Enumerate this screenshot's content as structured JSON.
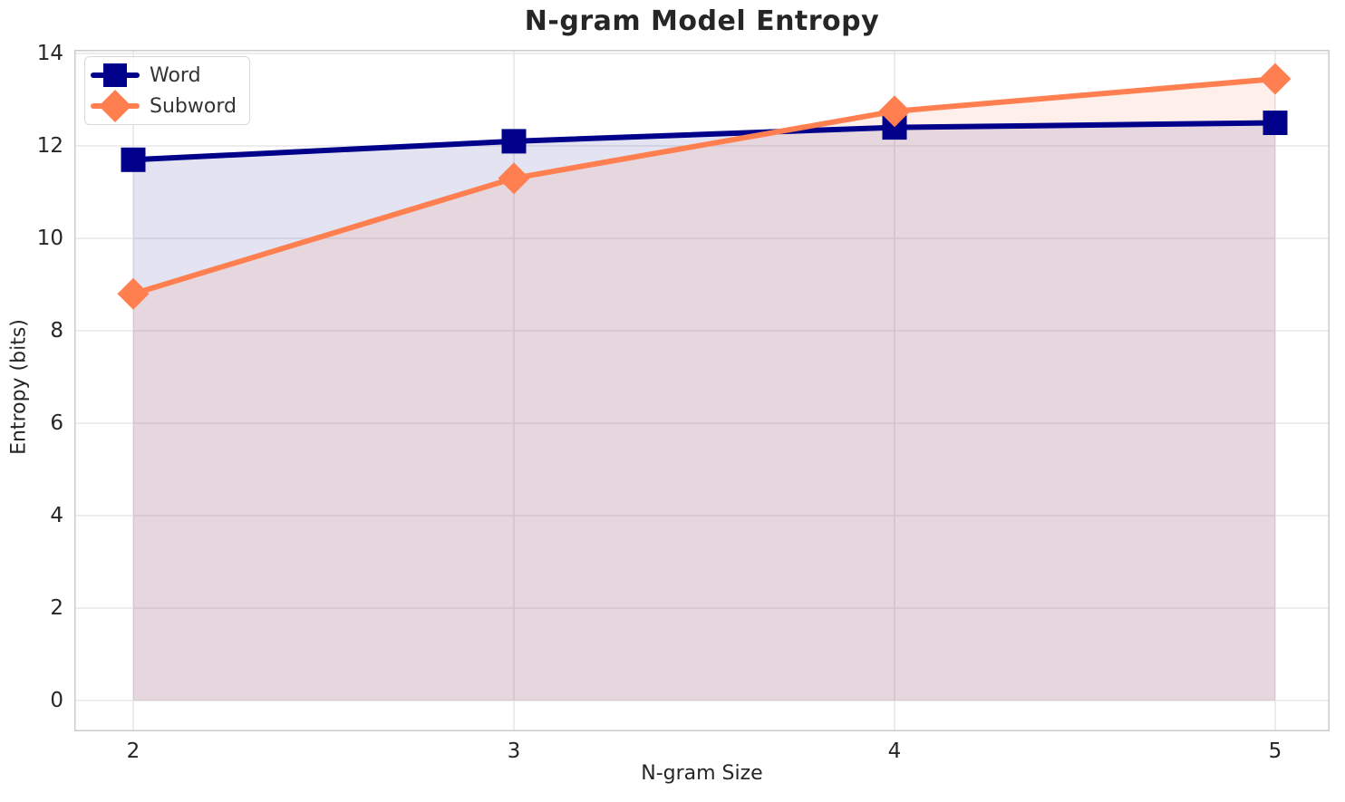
{
  "chart_data": {
    "type": "line",
    "title": "N-gram Model Entropy",
    "xlabel": "N-gram Size",
    "ylabel": "Entropy (bits)",
    "x": [
      2,
      3,
      4,
      5
    ],
    "xtick_labels": [
      "2",
      "3",
      "4",
      "5"
    ],
    "yticks": [
      0,
      2,
      4,
      6,
      8,
      10,
      12,
      14
    ],
    "ytick_labels": [
      "0",
      "2",
      "4",
      "6",
      "8",
      "10",
      "12",
      "14"
    ],
    "xlim": [
      1.85,
      5.14
    ],
    "ylim": [
      0,
      14
    ],
    "grid": true,
    "area_fill": true,
    "legend_position": "upper left",
    "series": [
      {
        "name": "Word",
        "color": "#00008B",
        "marker": "square",
        "fill_opacity": 0.11,
        "values": [
          11.7,
          12.1,
          12.4,
          12.5
        ]
      },
      {
        "name": "Subword",
        "color": "#FF7F50",
        "marker": "diamond",
        "fill_opacity": 0.12,
        "values": [
          8.8,
          11.3,
          12.75,
          13.45
        ]
      }
    ]
  },
  "styles": {
    "background": "#FFFFFF",
    "title_color": "#262626",
    "tick_color": "#262626",
    "grid_color": "#E7E7E7",
    "spine_color": "#CCCCCC",
    "legend_text_color": "#333333"
  }
}
